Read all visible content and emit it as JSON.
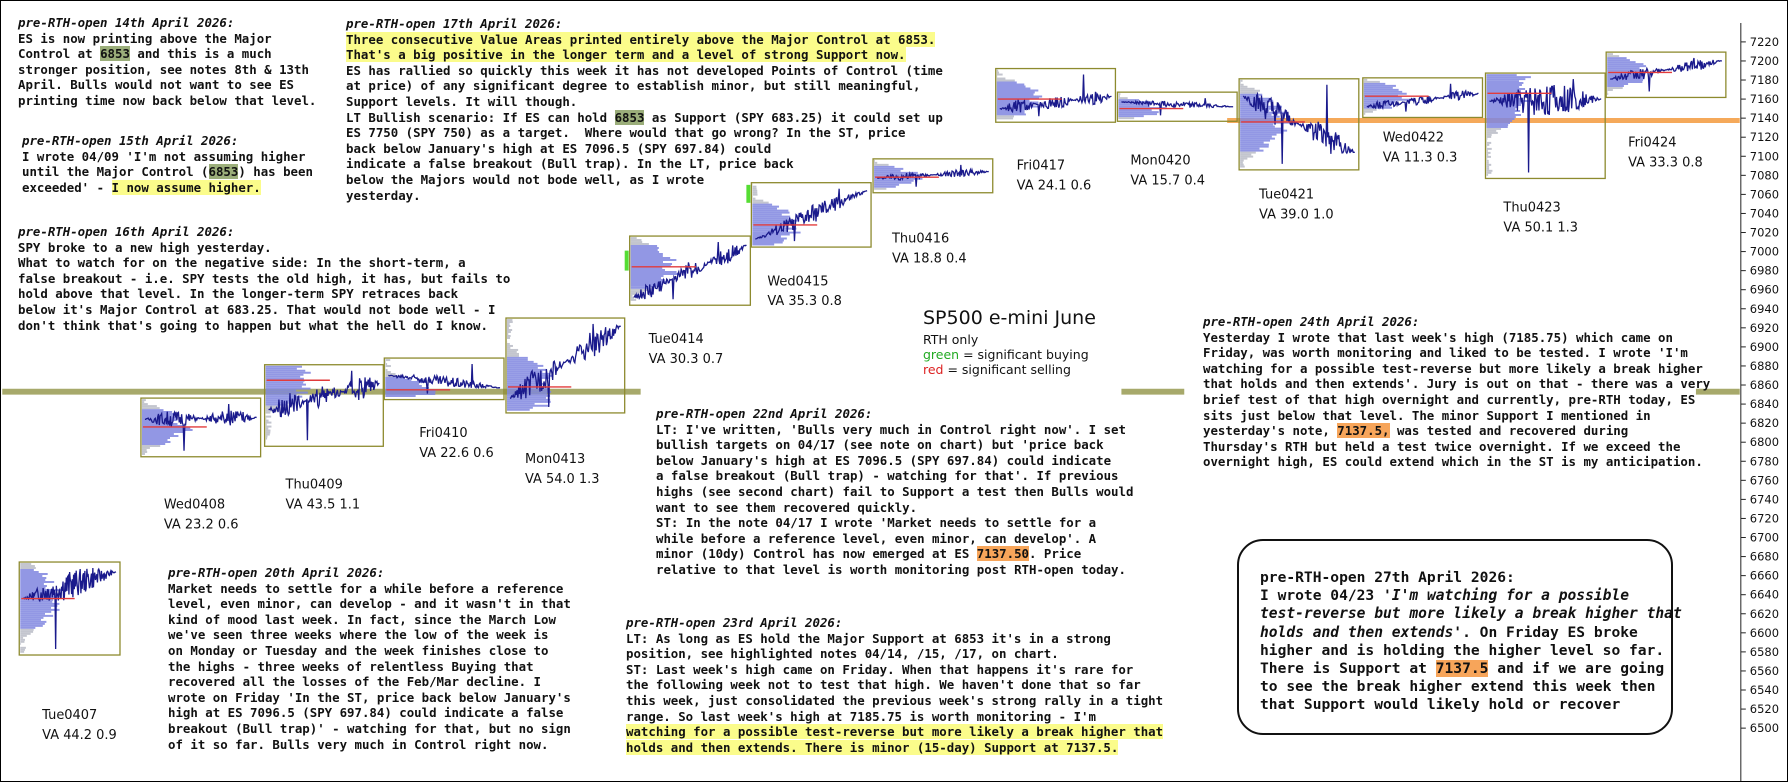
{
  "chart_data": {
    "type": "line",
    "title": "SP500 e-mini  June",
    "legend": [
      "RTH only",
      "green = significant buying",
      "red = significant selling"
    ],
    "y_axis": {
      "side": "right",
      "ylim": [
        6480,
        7240
      ],
      "ticks": [
        6500,
        6520,
        6540,
        6560,
        6580,
        6600,
        6620,
        6640,
        6660,
        6680,
        6700,
        6720,
        6740,
        6760,
        6780,
        6800,
        6820,
        6840,
        6860,
        6880,
        6900,
        6920,
        6940,
        6960,
        6980,
        7000,
        7020,
        7040,
        7060,
        7080,
        7100,
        7120,
        7140,
        7160,
        7180,
        7200,
        7220
      ]
    },
    "levels": [
      {
        "name": "Major Control",
        "value": 6853,
        "color": "#a7a96b"
      },
      {
        "name": "minor Support",
        "value": 7137.5,
        "color": "#f5a95a"
      }
    ],
    "sessions": [
      {
        "label": "Tue0407",
        "va": "VA 44.2  0.9",
        "open": 6636,
        "close": 6664,
        "low": 6583,
        "high": 6668,
        "poc": 6636
      },
      {
        "label": "Wed0408",
        "va": "VA 23.2  0.6",
        "open": 6824,
        "close": 6826,
        "low": 6791,
        "high": 6840,
        "poc": 6816
      },
      {
        "label": "Thu0409",
        "va": "VA 43.5  1.1",
        "open": 6834,
        "close": 6862,
        "low": 6802,
        "high": 6875,
        "poc": 6865
      },
      {
        "label": "Fri0410",
        "va": "VA 22.6  0.6",
        "open": 6870,
        "close": 6857,
        "low": 6851,
        "high": 6882,
        "poc": 6855
      },
      {
        "label": "Mon0413",
        "va": "VA 54.0  1.3",
        "open": 6846,
        "close": 6922,
        "low": 6837,
        "high": 6924,
        "poc": 6858
      },
      {
        "label": "Tue0414",
        "va": "VA 30.3  0.7",
        "open": 6952,
        "close": 7007,
        "low": 6950,
        "high": 7010,
        "poc": 6984
      },
      {
        "label": "Wed0415",
        "va": "VA 35.3  0.8",
        "open": 7013,
        "close": 7064,
        "low": 7011,
        "high": 7066,
        "poc": 7028
      },
      {
        "label": "Thu0416",
        "va": "VA 18.8  0.4",
        "open": 7077,
        "close": 7084,
        "low": 7068,
        "high": 7091,
        "poc": 7078
      },
      {
        "label": "Fri0417",
        "va": "VA 24.1  0.6",
        "open": 7150,
        "close": 7163,
        "low": 7142,
        "high": 7185.75,
        "poc": 7160
      },
      {
        "label": "Mon0420",
        "va": "VA 15.7  0.4",
        "open": 7157,
        "close": 7152,
        "low": 7143,
        "high": 7161,
        "poc": 7150
      },
      {
        "label": "Tue0421",
        "va": "VA 39.0  1.0",
        "open": 7163,
        "close": 7104,
        "low": 7092,
        "high": 7175,
        "poc": 7136
      },
      {
        "label": "Wed0422",
        "va": "VA 11.3  0.3",
        "open": 7152,
        "close": 7166,
        "low": 7147,
        "high": 7176,
        "poc": 7163
      },
      {
        "label": "Thu0423",
        "va": "VA 50.1  1.3",
        "open": 7158,
        "close": 7160,
        "low": 7083,
        "high": 7181,
        "poc": 7166
      },
      {
        "label": "Fri0424",
        "va": "VA 33.3  0.8",
        "open": 7181,
        "close": 7200,
        "low": 7168,
        "high": 7203,
        "poc": 7188
      }
    ]
  },
  "notes": {
    "n14": {
      "head": "pre-RTH-open 14th April 2026:",
      "lines": [
        [
          {
            "t": "ES is now printing above the Major"
          }
        ],
        [
          {
            "t": "Control at "
          },
          {
            "t": "6853",
            "h": "g"
          },
          {
            "t": " and this is a much"
          }
        ],
        [
          {
            "t": "stronger position, see notes 8th & 13th"
          }
        ],
        [
          {
            "t": "April. Bulls would not want to see ES"
          }
        ],
        [
          {
            "t": "printing time now back below that level."
          }
        ]
      ]
    },
    "n15": {
      "head": "pre-RTH-open 15th April 2026:",
      "lines": [
        [
          {
            "t": "I wrote 04/09 'I'm not assuming higher"
          }
        ],
        [
          {
            "t": "until the Major Control ("
          },
          {
            "t": "6853",
            "h": "g"
          },
          {
            "t": ") has been"
          }
        ],
        [
          {
            "t": "exceeded' - "
          },
          {
            "t": "I now assume higher.",
            "h": "y"
          }
        ]
      ]
    },
    "n16": {
      "head": "pre-RTH-open 16th April 2026:",
      "lines": [
        [
          {
            "t": "SPY broke to a new high yesterday."
          }
        ],
        [
          {
            "t": "What to watch for on the negative side: In the short-term, a"
          }
        ],
        [
          {
            "t": "false breakout - i.e. SPY tests the old high, it has, but fails to"
          }
        ],
        [
          {
            "t": "hold above that level. In the longer-term SPY retraces back"
          }
        ],
        [
          {
            "t": "below it's Major Control at 683.25. That would not bode well - I"
          }
        ],
        [
          {
            "t": "don't think that's going to happen but what the hell do I know."
          }
        ]
      ]
    },
    "n17": {
      "head": "pre-RTH-open 17th April 2026:",
      "lines": [
        [
          {
            "t": "Three consecutive Value Areas printed entirely above the Major Control at 6853.",
            "h": "y"
          }
        ],
        [
          {
            "t": "That's a big positive in the longer term and a level of strong Support now.",
            "h": "y"
          }
        ],
        [
          {
            "t": "ES has rallied so quickly this week it has not developed Points of Control (time"
          }
        ],
        [
          {
            "t": "at price) of any significant degree to establish minor, but still meaningful,"
          }
        ],
        [
          {
            "t": "Support levels. It will though."
          }
        ],
        [
          {
            "t": "LT Bullish scenario: If ES can hold "
          },
          {
            "t": "6853",
            "h": "g"
          },
          {
            "t": " as Support (SPY 683.25) it could set up"
          }
        ],
        [
          {
            "t": "ES 7750 (SPY 750) as a target.  Where would that go wrong? In the ST, price"
          }
        ],
        [
          {
            "t": "back below January's high at ES 7096.5 (SPY 697.84) could"
          }
        ],
        [
          {
            "t": "indicate a false breakout (Bull trap). In the LT, price back"
          }
        ],
        [
          {
            "t": "below the Majors would not bode well, as I wrote"
          }
        ],
        [
          {
            "t": "yesterday."
          }
        ]
      ]
    },
    "n20": {
      "head": "pre-RTH-open 20th April 2026:",
      "lines": [
        [
          {
            "t": "Market needs to settle for a while before a reference"
          }
        ],
        [
          {
            "t": "level, even minor, can develop - and it wasn't in that"
          }
        ],
        [
          {
            "t": "kind of mood last week. In fact, since the March Low"
          }
        ],
        [
          {
            "t": "we've seen three weeks where the low of the week is"
          }
        ],
        [
          {
            "t": "on Monday or Tuesday and the week finishes close to"
          }
        ],
        [
          {
            "t": "the highs - three weeks of relentless Buying that"
          }
        ],
        [
          {
            "t": "recovered all the losses of the Feb/Mar decline. I"
          }
        ],
        [
          {
            "t": "wrote on Friday 'In the ST, price back below January's"
          }
        ],
        [
          {
            "t": "high at ES 7096.5 (SPY 697.84) could indicate a false"
          }
        ],
        [
          {
            "t": "breakout (Bull trap)' - watching for that, but no sign"
          }
        ],
        [
          {
            "t": "of it so far. Bulls very much in Control right now."
          }
        ]
      ]
    },
    "n22": {
      "head": "pre-RTH-open 22nd April 2026:",
      "lines": [
        [
          {
            "t": "LT: I've written, 'Bulls very much in Control right now'. I set"
          }
        ],
        [
          {
            "t": "bullish targets on 04/17 (see note on chart) but 'price back"
          }
        ],
        [
          {
            "t": "below January's high at ES 7096.5 (SPY 697.84) could indicate"
          }
        ],
        [
          {
            "t": "a false breakout (Bull trap) - watching for that'. If previous"
          }
        ],
        [
          {
            "t": "highs (see second chart) fail to Support a test then Bulls would"
          }
        ],
        [
          {
            "t": "want to see them recovered quickly."
          }
        ],
        [
          {
            "t": "ST: In the note 04/17 I wrote 'Market needs to settle for a"
          }
        ],
        [
          {
            "t": "while before a reference level, even minor, can develop'. A"
          }
        ],
        [
          {
            "t": "minor (10dy) Control has now emerged at ES "
          },
          {
            "t": "7137.50",
            "h": "o"
          },
          {
            "t": ". Price"
          }
        ],
        [
          {
            "t": "relative to that level is worth monitoring post RTH-open today."
          }
        ]
      ]
    },
    "n23": {
      "head": "pre-RTH-open 23rd April 2026:",
      "lines": [
        [
          {
            "t": "LT: As long as ES hold the Major Support at 6853 it's in a strong"
          }
        ],
        [
          {
            "t": "position, see highlighted notes 04/14, /15, /17, on chart."
          }
        ],
        [
          {
            "t": "ST: Last week's high came on Friday. When that happens it's rare for"
          }
        ],
        [
          {
            "t": "the following week not to test that high. We haven't done that so far"
          }
        ],
        [
          {
            "t": "this week, just consolidated the previous week's strong rally in a tight"
          }
        ],
        [
          {
            "t": "range. So last week's high at 7185.75 is worth monitoring - I'm"
          }
        ],
        [
          {
            "t": "watching for a possible test-reverse but more likely a break higher that",
            "h": "y"
          }
        ],
        [
          {
            "t": "holds and then extends. There is minor (15-day) Support at 7137.5.",
            "h": "y"
          }
        ]
      ]
    },
    "n24": {
      "head": "pre-RTH-open 24th April 2026:",
      "lines": [
        [
          {
            "t": "Yesterday I wrote that last week's high (7185.75) which came on"
          }
        ],
        [
          {
            "t": "Friday, was worth monitoring and liked to be tested. I wrote 'I'm"
          }
        ],
        [
          {
            "t": "watching for a possible test-reverse but more likely a break higher"
          }
        ],
        [
          {
            "t": "that holds and then extends'. Jury is out on that - there was a very"
          }
        ],
        [
          {
            "t": "brief test of that high overnight and currently, pre-RTH today, ES"
          }
        ],
        [
          {
            "t": "sits just below that level. The minor Support I mentioned in"
          }
        ],
        [
          {
            "t": "yesterday's note, "
          },
          {
            "t": "7137.5,",
            "h": "o"
          },
          {
            "t": " was tested and recovered during"
          }
        ],
        [
          {
            "t": "Thursday's RTH but held a test twice overnight. If we exceed the"
          }
        ],
        [
          {
            "t": "overnight high, ES could extend which in the ST is my anticipation."
          }
        ]
      ]
    },
    "n27": {
      "head": "pre-RTH-open 27th April 2026:",
      "lines": [
        [
          {
            "t": "I wrote 04/23 '"
          },
          {
            "t": "I'm watching for a possible",
            "i": true
          }
        ],
        [
          {
            "t": "test-reverse but more likely a break higher that",
            "i": true
          }
        ],
        [
          {
            "t": "holds and then extends",
            "i": true
          },
          {
            "t": "'. On Friday ES broke"
          }
        ],
        [
          {
            "t": "higher and is holding the higher level so far."
          }
        ],
        [
          {
            "t": "There is Support at "
          },
          {
            "t": "7137.5",
            "h": "o"
          },
          {
            "t": " and if we are going"
          }
        ],
        [
          {
            "t": "to see the break higher extend this week then"
          }
        ],
        [
          {
            "t": "that Support would likely hold or recover"
          }
        ]
      ]
    }
  },
  "colors": {
    "price": "#1a1a8c",
    "profile": "#7f86e0",
    "profile_grey": "#b9bcc6",
    "poc": "#e23b3b",
    "box": "#8d8a2e",
    "major": "#a7a96b",
    "minor": "#f5a95a",
    "green_bar": "#55dd33",
    "buying": "#22aa22",
    "selling": "#dd2222"
  }
}
